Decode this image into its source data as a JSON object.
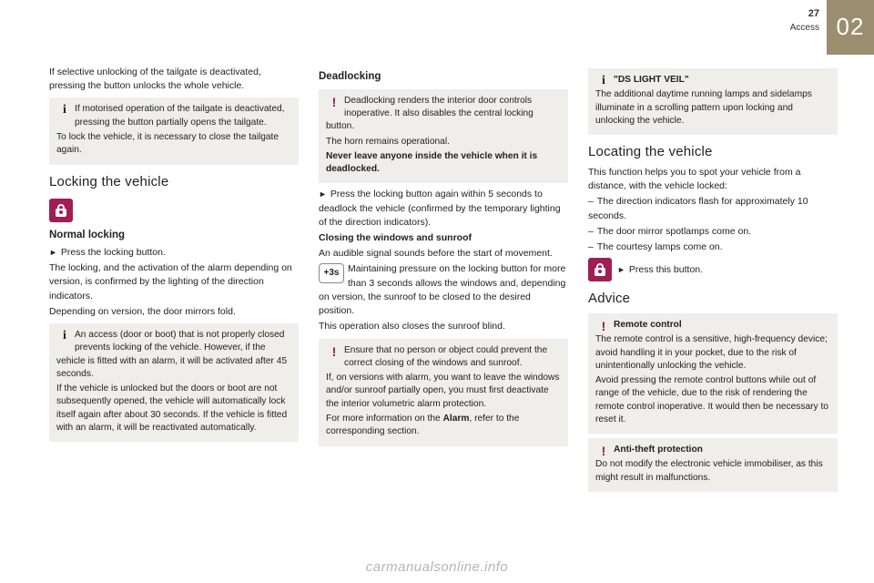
{
  "page": {
    "number": "27",
    "section": "Access",
    "chapter": "02"
  },
  "col1": {
    "intro": "If selective unlocking of the tailgate is deactivated, pressing the button unlocks the whole vehicle.",
    "info1_a": "If motorised operation of the tailgate is deactivated, pressing the button partially opens the tailgate.",
    "info1_b": "To lock the vehicle, it is necessary to close the tailgate again.",
    "h_locking": "Locking the vehicle",
    "h_normal": "Normal locking",
    "step1": "Press the locking button.",
    "p_lock1": "The locking, and the activation of the alarm depending on version, is confirmed by the lighting of the direction indicators.",
    "p_lock2": "Depending on version, the door mirrors fold.",
    "info2_a": "An access (door or boot) that is not properly closed prevents locking of the vehicle. However, if the vehicle is fitted with an alarm, it will be activated after 45 seconds.",
    "info2_b": "If the vehicle is unlocked but the doors or boot are not subsequently opened, the vehicle will automatically lock itself again after about 30 seconds. If the vehicle is fitted with an alarm, it will be reactivated automatically."
  },
  "col2": {
    "h_dead": "Deadlocking",
    "warn1_a": "Deadlocking renders the interior door controls inoperative. It also disables the central locking button.",
    "warn1_b": "The horn remains operational.",
    "warn1_c": "Never leave anyone inside the vehicle when it is deadlocked.",
    "step1": "Press the locking button again within 5 seconds to deadlock the vehicle (confirmed by the temporary lighting of the direction indicators).",
    "h_close": "Closing the windows and sunroof",
    "p_audible": "An audible signal sounds before the start of movement.",
    "icon3s": "+3s",
    "p_3s": "Maintaining pressure on the locking button for more than 3 seconds allows the windows and, depending on version, the sunroof to be closed to the desired position.",
    "p_blind": "This operation also closes the sunroof blind.",
    "warn2_a": "Ensure that no person or object could prevent the correct closing of the windows and sunroof.",
    "warn2_b": "If, on versions with alarm, you want to leave the windows and/or sunroof partially open, you must first deactivate the interior volumetric alarm protection.",
    "warn2_c_pre": "For more information on the ",
    "warn2_c_bold": "Alarm",
    "warn2_c_post": ", refer to the corresponding section."
  },
  "col3": {
    "info_ds_title": "\"DS LIGHT VEIL\"",
    "info_ds_body": "The additional daytime running lamps and sidelamps illuminate in a scrolling pattern upon locking and unlocking the vehicle.",
    "h_locate": "Locating the vehicle",
    "p_locate": "This function helps you to spot your vehicle from a distance, with the vehicle locked:",
    "li1": "The direction indicators flash for approximately 10 seconds.",
    "li2": "The door mirror spotlamps come on.",
    "li3": "The courtesy lamps come on.",
    "step_press": "Press this button.",
    "h_advice": "Advice",
    "warn_rc_title": "Remote control",
    "warn_rc_a": "The remote control is a sensitive, high-frequency device; avoid handling it in your pocket, due to the risk of unintentionally unlocking the vehicle.",
    "warn_rc_b": "Avoid pressing the remote control buttons while out of range of the vehicle, due to the risk of rendering the remote control inoperative. It would then be necessary to reset it.",
    "warn_at_title": "Anti-theft protection",
    "warn_at_body": "Do not modify the electronic vehicle immobiliser, as this might result in malfunctions."
  },
  "watermark": "carmanualsonline.info"
}
